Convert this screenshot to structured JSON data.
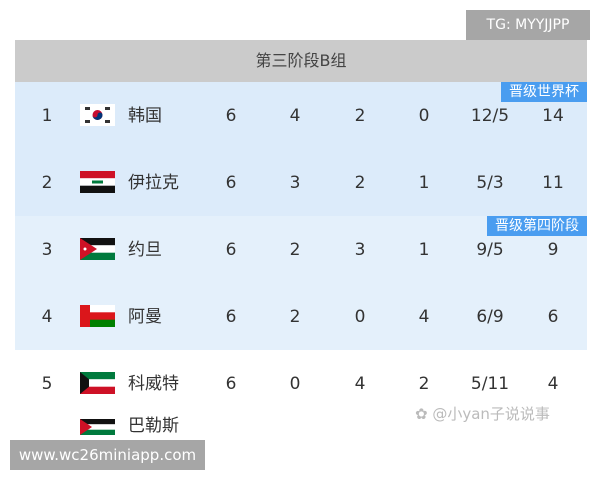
{
  "watermarks": {
    "tg": "TG: MYYJJPP",
    "weibo": "@小yan子说说事",
    "url": "www.wc26miniapp.com"
  },
  "table": {
    "title": "第三阶段B组",
    "badges": {
      "qualify": "晋级世界杯",
      "fourth": "晋级第四阶段"
    },
    "rows": [
      {
        "rank": "1",
        "team": "韩国",
        "flag": "south-korea-flag",
        "p": "6",
        "w": "4",
        "d": "2",
        "l": "0",
        "goals": "12/5",
        "pts": "14"
      },
      {
        "rank": "2",
        "team": "伊拉克",
        "flag": "iraq-flag",
        "p": "6",
        "w": "3",
        "d": "2",
        "l": "1",
        "goals": "5/3",
        "pts": "11"
      },
      {
        "rank": "3",
        "team": "约旦",
        "flag": "jordan-flag",
        "p": "6",
        "w": "2",
        "d": "3",
        "l": "1",
        "goals": "9/5",
        "pts": "9"
      },
      {
        "rank": "4",
        "team": "阿曼",
        "flag": "oman-flag",
        "p": "6",
        "w": "2",
        "d": "0",
        "l": "4",
        "goals": "6/9",
        "pts": "6"
      },
      {
        "rank": "5",
        "team": "科威特",
        "flag": "kuwait-flag",
        "p": "6",
        "w": "0",
        "d": "4",
        "l": "2",
        "goals": "5/11",
        "pts": "4"
      },
      {
        "rank": "",
        "team": "巴勒斯",
        "flag": "palestine-flag"
      }
    ]
  }
}
